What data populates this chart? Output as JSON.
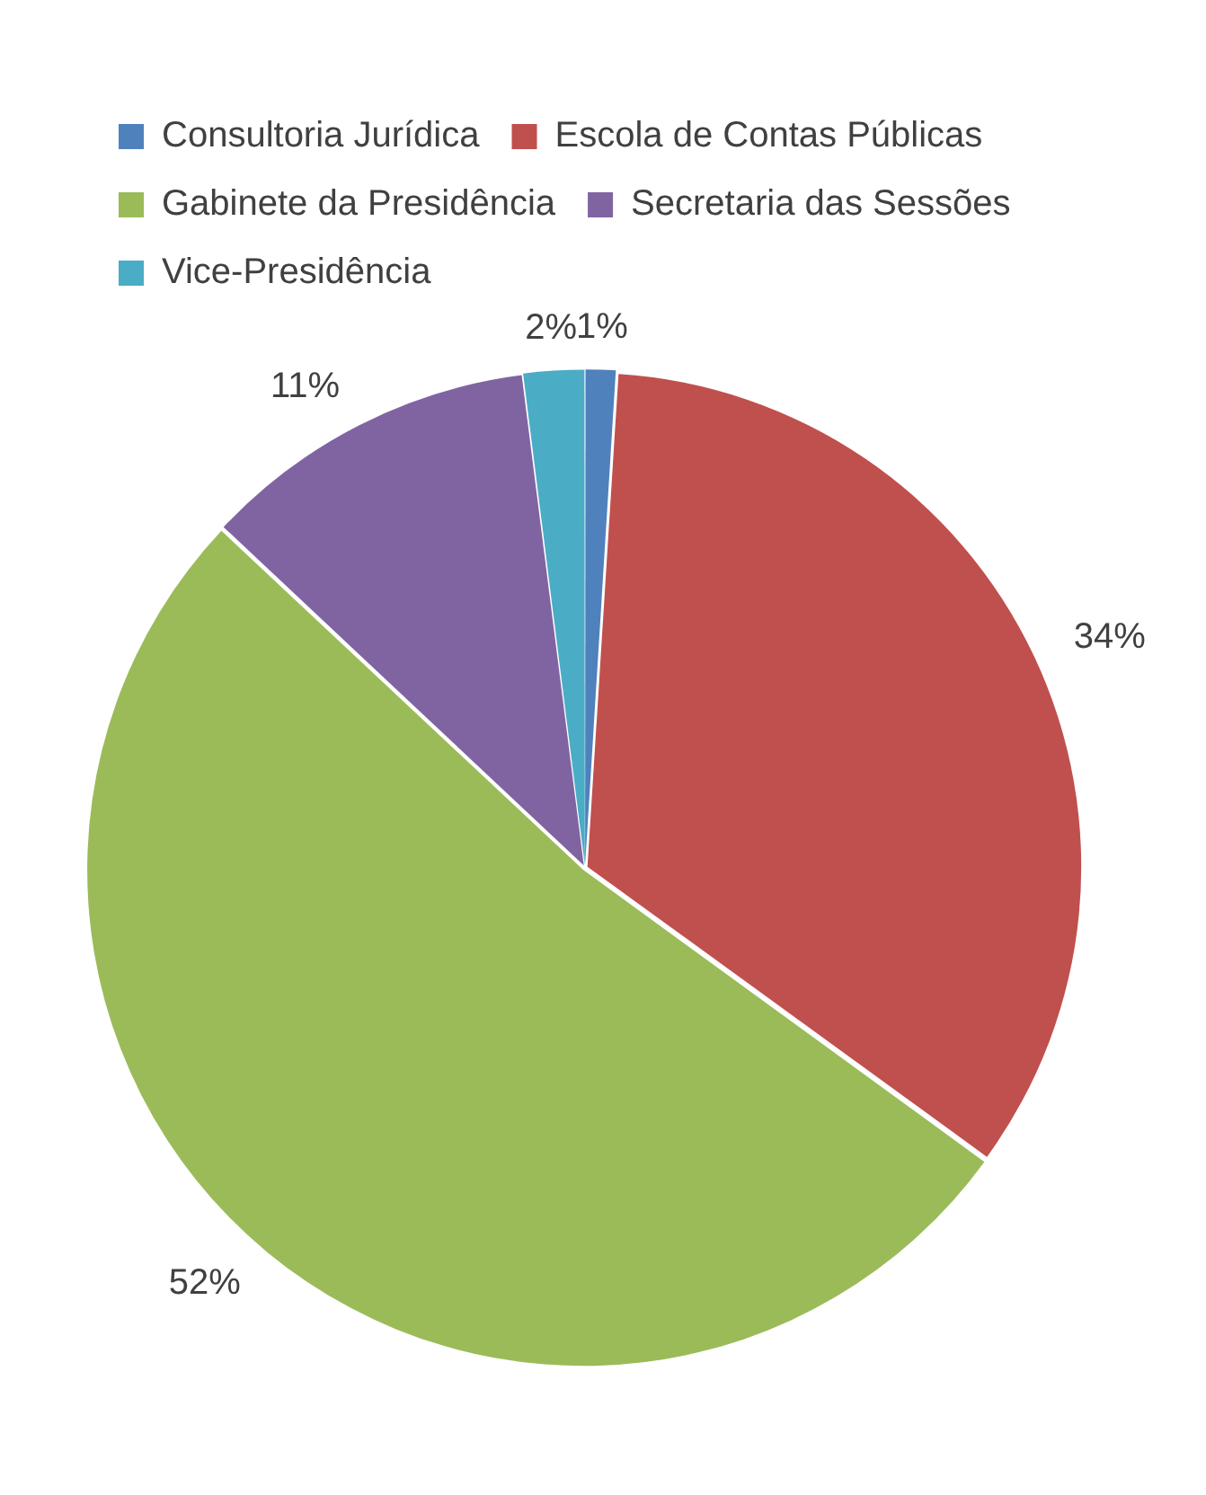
{
  "chart_data": {
    "type": "pie",
    "categories": [
      "Consultoria Jurídica",
      "Escola de Contas Públicas",
      "Gabinete da Presidência",
      "Secretaria das Sessões",
      "Vice-Presidência"
    ],
    "values": [
      1,
      34,
      52,
      11,
      2
    ],
    "colors": [
      "#4f81bd",
      "#c0504d",
      "#9bbb59",
      "#8064a2",
      "#4bacc6"
    ],
    "value_labels": [
      "1%",
      "34%",
      "52%",
      "11%",
      "2%"
    ],
    "legend": "top"
  }
}
